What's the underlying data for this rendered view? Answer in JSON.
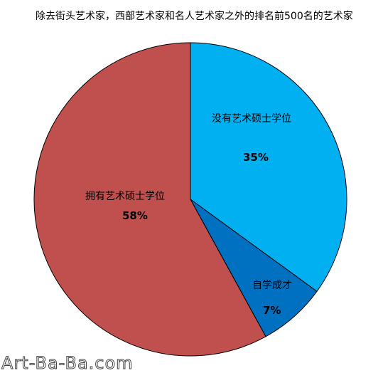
{
  "chart_data": {
    "type": "pie",
    "title": "除去街头艺术家，西部艺术家和名人艺术家之外的排名前500名的艺术家",
    "categories": [
      "没有艺术硕士学位",
      "自学成才",
      "拥有艺术硕士学位"
    ],
    "values": [
      35,
      7,
      58
    ],
    "value_labels": [
      "35%",
      "7%",
      "58%"
    ],
    "colors": [
      "#00b0f0",
      "#0070c0",
      "#c0504d"
    ]
  },
  "watermark": "Art-Ba-Ba.com"
}
